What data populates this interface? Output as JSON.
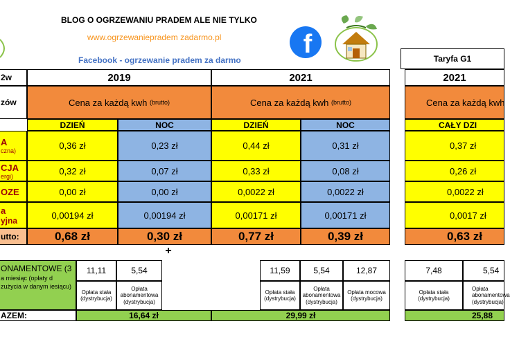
{
  "header": {
    "blog_title": "BLOG O OGRZEWANIU PRADEM ALE NIE TYLKO",
    "website": "www.ogrzewaniepradem zadarmo.pl",
    "facebook_text": "Facebook - ogrzewanie pradem za darmo",
    "tariff_label": "Taryfa G1",
    "colors": {
      "website": "#f7941d",
      "facebook": "#4472c4",
      "facebook_icon": "#1877f2"
    }
  },
  "table": {
    "corner_label": "2w",
    "years": [
      "2019",
      "2021",
      "2021"
    ],
    "row_label_price": "zów",
    "price_header": "Cena za każdą kwh",
    "price_header_note": "(brutto)",
    "sub_headers": [
      "DZIEŃ",
      "NOC",
      "DZIEŃ",
      "NOC",
      "CAŁY DZI"
    ],
    "rows": [
      {
        "label": "A",
        "sublabel": "czna)",
        "values": [
          "0,36 zł",
          "0,23 zł",
          "0,44 zł",
          "0,31 zł",
          "0,37 zł"
        ]
      },
      {
        "label": "CJA",
        "sublabel": "ergi)",
        "values": [
          "0,32 zł",
          "0,07 zł",
          "0,33 zł",
          "0,08 zł",
          "0,26 zł"
        ]
      },
      {
        "label": "OZE",
        "sublabel": "",
        "values": [
          "0,00 zł",
          "0,00 zł",
          "0,0022 zł",
          "0,0022 zł",
          "0,0022 zł"
        ]
      },
      {
        "label": "a",
        "sublabel": "yjna",
        "values": [
          "0,00194 zł",
          "0,00194 zł",
          "0,00171 zł",
          "0,00171 zł",
          "0,0017 zł"
        ]
      }
    ],
    "total_label": "utto:",
    "totals": [
      "0,68 zł",
      "0,30 zł",
      "0,77 zł",
      "0,39 zł",
      "0,63 zł"
    ],
    "plus_sign": "+"
  },
  "fees": {
    "label_title": "ONAMENTOWE (3",
    "label_desc": "a miesiąc    (opłaty d zużycia w danym iesiącu)",
    "group_2019": {
      "values": [
        "11,11",
        "5,54"
      ],
      "captions": [
        "Opłata stała (dystrybucja)",
        "Opłata abonamentowa (dystrybucja)"
      ]
    },
    "group_2021": {
      "values": [
        "11,59",
        "5,54",
        "12,87"
      ],
      "captions": [
        "Opłata stała (dystrybucja)",
        "Opłata abonamentowa (dystrybucja)",
        "Opłata mocowa (dystrybucja)"
      ]
    },
    "group_g11": {
      "values": [
        "7,48",
        "5,54"
      ],
      "captions": [
        "Opłata stała (dystrybucja)",
        "Opłata abonamentowa (dystrybucja)"
      ]
    },
    "sum_label": "AZEM:",
    "sums": [
      "16,64 zł",
      "29,99 zł",
      "25,88"
    ]
  }
}
